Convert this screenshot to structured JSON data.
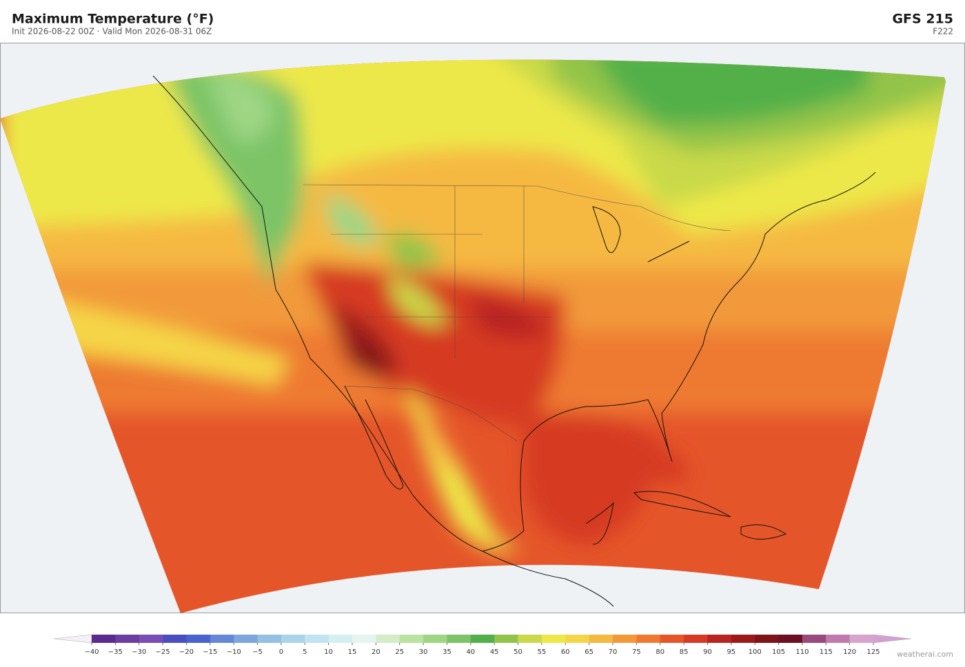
{
  "header": {
    "title": "Maximum Temperature  (°F)",
    "subtitle": "Init 2026-08-22 00Z  ·  Valid Mon 2026-08-31 06Z",
    "model": "GFS  215",
    "forecast_hour": "F222"
  },
  "colorbar": {
    "ticks": [
      {
        "value": -40,
        "label": "−40"
      },
      {
        "value": -35,
        "label": "−35"
      },
      {
        "value": -30,
        "label": "−30"
      },
      {
        "value": -25,
        "label": "−25"
      },
      {
        "value": -20,
        "label": "−20"
      },
      {
        "value": -15,
        "label": "−15"
      },
      {
        "value": -10,
        "label": "−10"
      },
      {
        "value": -5,
        "label": "−5"
      },
      0,
      5,
      10,
      15,
      20,
      25,
      30,
      35,
      40,
      45,
      50,
      55,
      60,
      65,
      70,
      75,
      80,
      85,
      90,
      95,
      100,
      105,
      110,
      115,
      120,
      125
    ],
    "colors": [
      "#5b2a8e",
      "#6b3fa0",
      "#7a4db5",
      "#4a4fc0",
      "#4a63cc",
      "#6488d6",
      "#7ca6dc",
      "#93c0e3",
      "#aad4ea",
      "#c2e4f0",
      "#d5eef2",
      "#e5f4ee",
      "#d4edc8",
      "#b9e3a0",
      "#9ed684",
      "#7cc466",
      "#52b04a",
      "#93c44a",
      "#c9d94a",
      "#ede84a",
      "#f5d547",
      "#f5b942",
      "#f29a3a",
      "#ee7a32",
      "#e5552a",
      "#d63a24",
      "#b82420",
      "#9a1a1c",
      "#7e1418",
      "#6a1020",
      "#9a4a7a",
      "#c07aae",
      "#d9a4cc"
    ],
    "under_color": "#f4f0f8",
    "over_color": "#d4a0d0"
  },
  "footer": {
    "credit": "weatherai.com"
  }
}
